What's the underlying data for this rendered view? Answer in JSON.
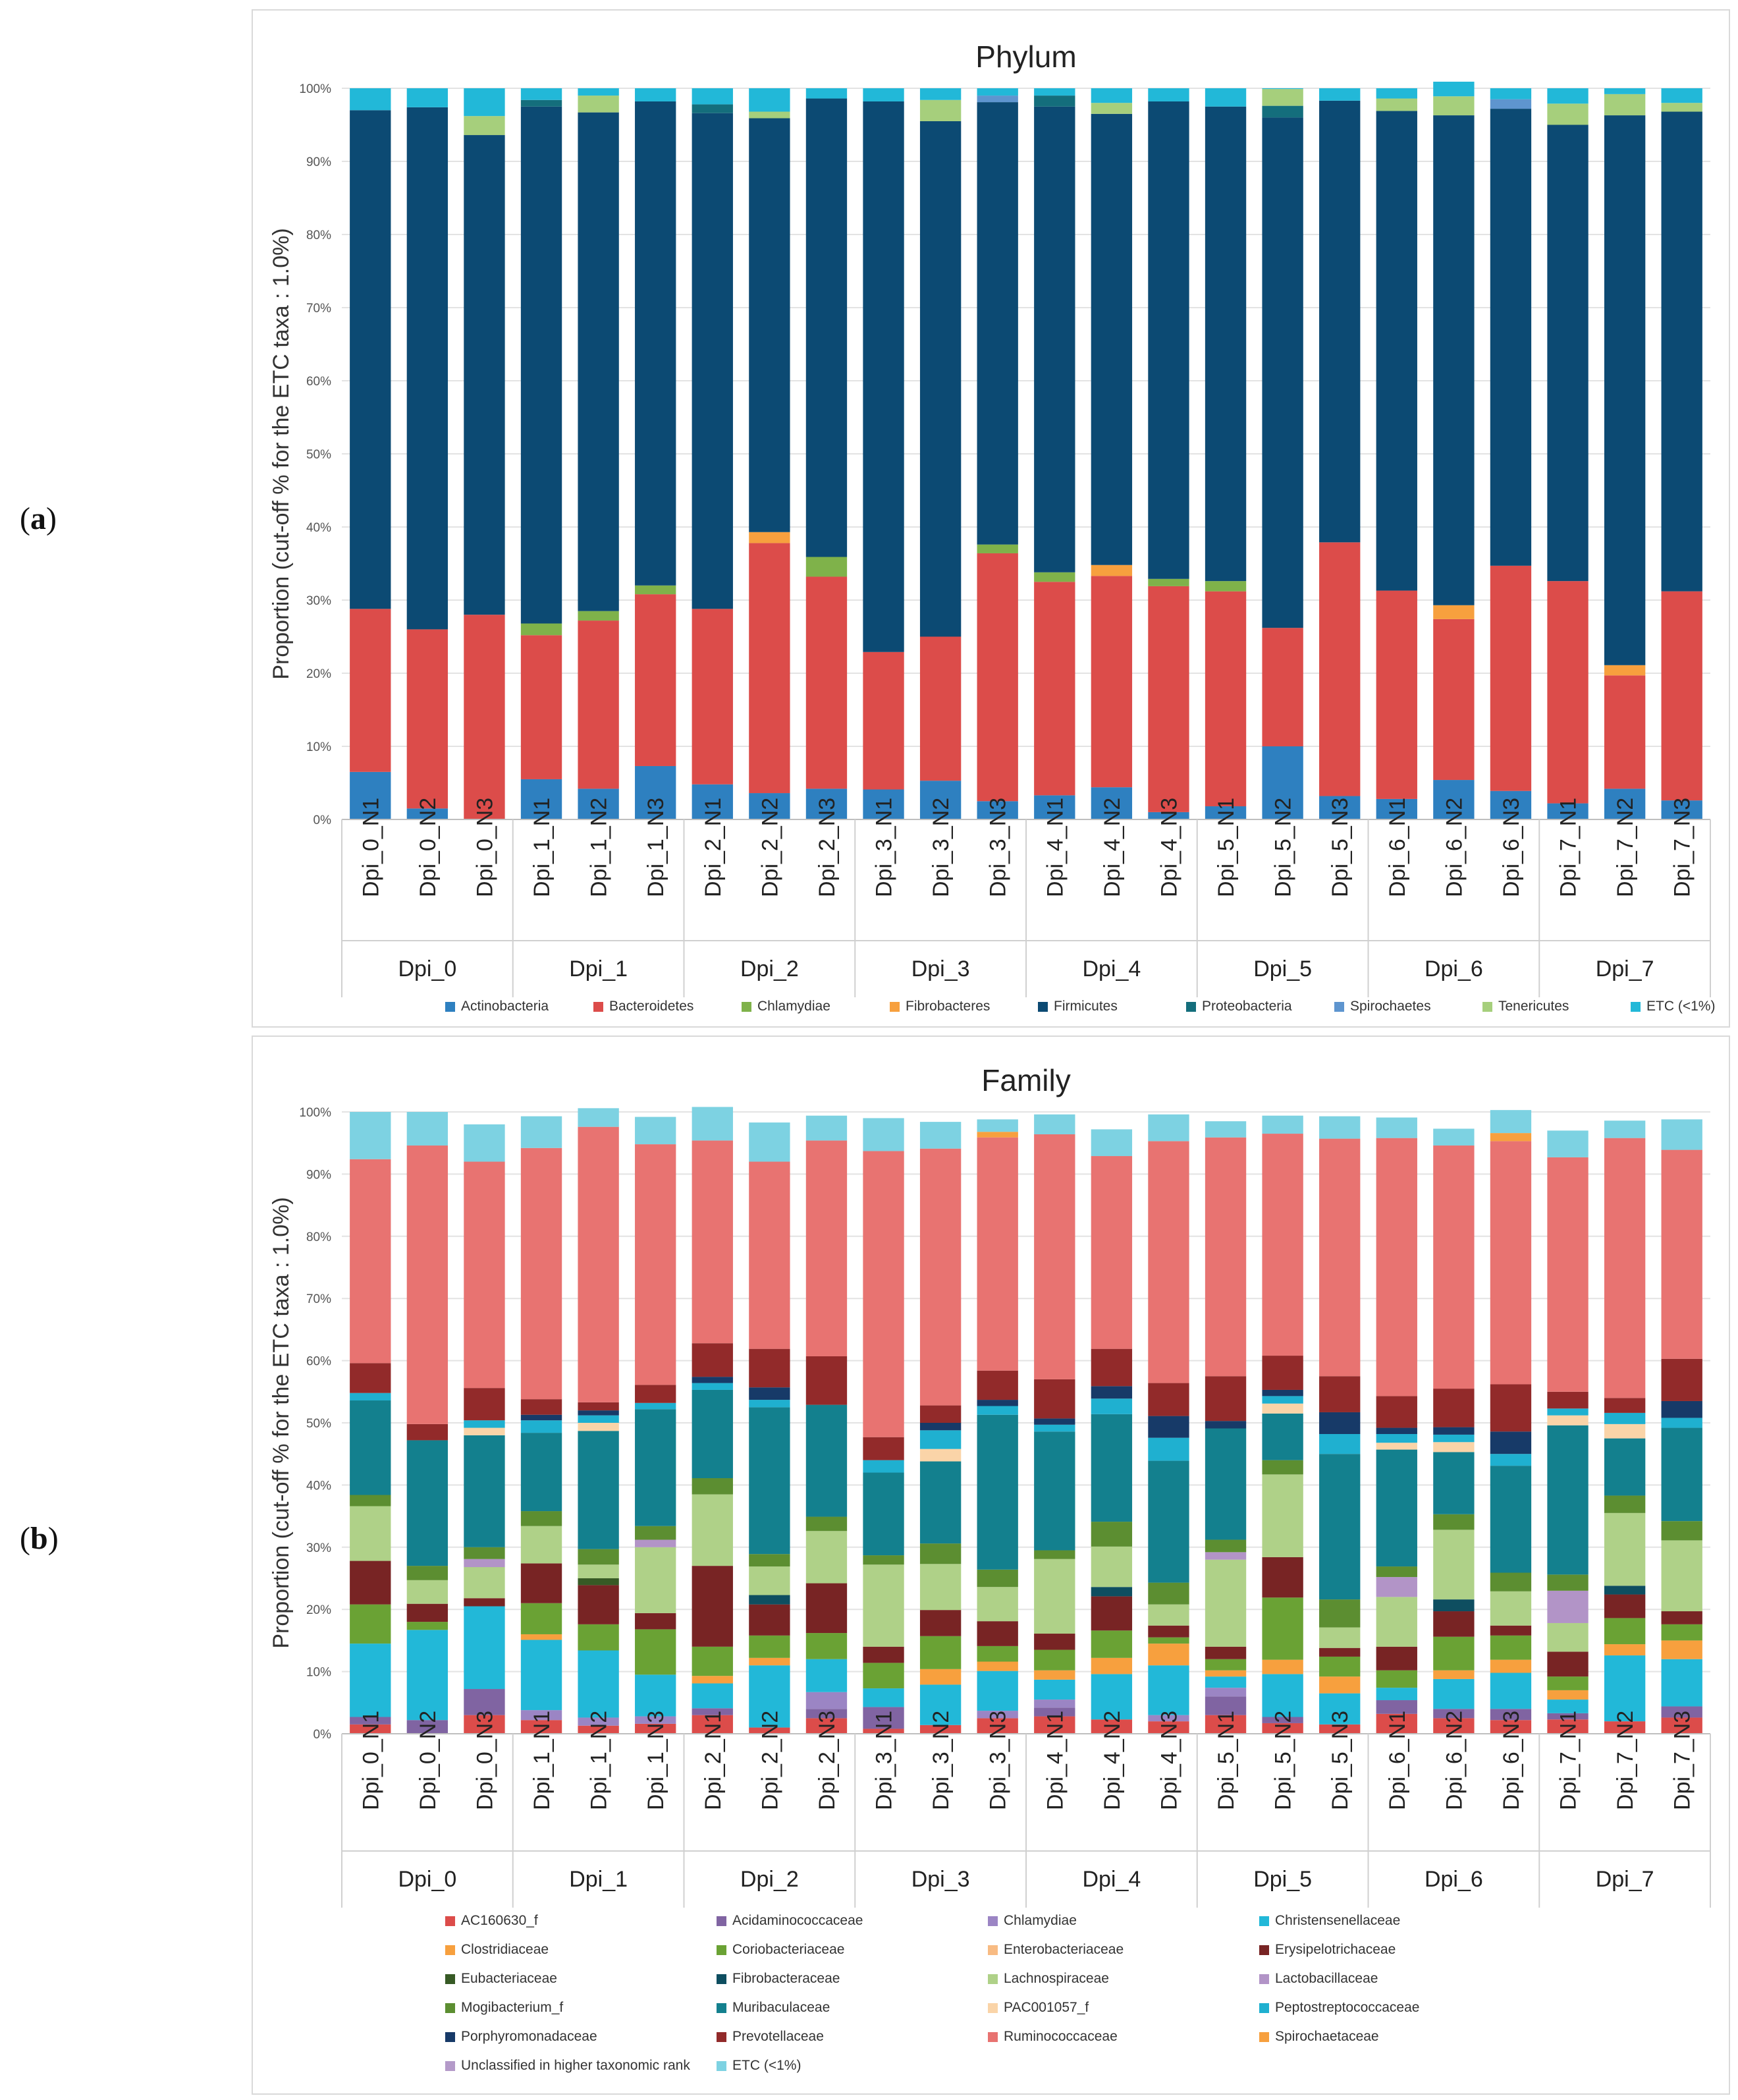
{
  "panels": {
    "a_label": "a",
    "b_label": "b"
  },
  "chart_data": [
    {
      "type": "bar",
      "stacked": true,
      "title": "Phylum",
      "ylabel": "Proportion (cut-off % for the ETC taxa : 1.0%)",
      "ylim": [
        0,
        100
      ],
      "yticks": [
        "0%",
        "10%",
        "20%",
        "30%",
        "40%",
        "50%",
        "60%",
        "70%",
        "80%",
        "90%",
        "100%"
      ],
      "categories": [
        "Dpi_0_N1",
        "Dpi_0_N2",
        "Dpi_0_N3",
        "Dpi_1_N1",
        "Dpi_1_N2",
        "Dpi_1_N3",
        "Dpi_2_N1",
        "Dpi_2_N2",
        "Dpi_2_N3",
        "Dpi_3_N1",
        "Dpi_3_N2",
        "Dpi_3_N3",
        "Dpi_4_N1",
        "Dpi_4_N2",
        "Dpi_4_N3",
        "Dpi_5_N1",
        "Dpi_5_N2",
        "Dpi_5_N3",
        "Dpi_6_N1",
        "Dpi_6_N2",
        "Dpi_6_N3",
        "Dpi_7_N1",
        "Dpi_7_N2",
        "Dpi_7_N3"
      ],
      "groups": [
        "Dpi_0",
        "Dpi_1",
        "Dpi_2",
        "Dpi_3",
        "Dpi_4",
        "Dpi_5",
        "Dpi_6",
        "Dpi_7"
      ],
      "legend_position": "bottom",
      "series": [
        {
          "name": "Actinobacteria",
          "color": "#2e80c0",
          "values": [
            6.5,
            1.5,
            0,
            5.5,
            4.2,
            7.3,
            4.8,
            3.6,
            4.2,
            4.1,
            5.3,
            2.5,
            3.3,
            4.4,
            1.0,
            1.8,
            10.0,
            3.2,
            2.8,
            5.4,
            3.9,
            2.2,
            4.2,
            2.6
          ]
        },
        {
          "name": "Bacteroidetes",
          "color": "#dc4c4a",
          "values": [
            22.3,
            24.5,
            28.0,
            19.7,
            23.0,
            23.5,
            24.0,
            34.2,
            29.0,
            18.8,
            19.7,
            33.9,
            29.2,
            28.9,
            30.9,
            29.4,
            16.2,
            34.7,
            28.5,
            22.0,
            30.8,
            30.4,
            15.5,
            28.6
          ]
        },
        {
          "name": "Chlamydiae",
          "color": "#7fb24a",
          "values": [
            0,
            0,
            0,
            1.6,
            1.3,
            1.2,
            0,
            0,
            2.7,
            0,
            0,
            1.2,
            1.3,
            0,
            1.0,
            1.4,
            0,
            0,
            0,
            0,
            0,
            0,
            0,
            0
          ]
        },
        {
          "name": "Fibrobacteres",
          "color": "#f7a03e",
          "values": [
            0,
            0,
            0,
            0,
            0,
            0,
            0,
            1.5,
            0,
            0,
            0,
            0,
            0,
            1.5,
            0,
            0,
            0,
            0,
            0,
            1.9,
            0,
            0,
            1.4,
            0
          ]
        },
        {
          "name": "Firmicutes",
          "color": "#0c4a73",
          "values": [
            68.2,
            71.4,
            65.6,
            70.7,
            68.2,
            66.2,
            67.8,
            56.6,
            62.7,
            75.3,
            70.5,
            60.5,
            63.7,
            61.7,
            65.3,
            64.9,
            69.8,
            60.4,
            65.6,
            67.0,
            62.5,
            62.4,
            75.2,
            65.6
          ]
        },
        {
          "name": "Proteobacteria",
          "color": "#146e7c",
          "values": [
            0,
            0,
            0,
            0.9,
            0,
            0,
            1.2,
            0,
            0,
            0,
            0,
            0,
            1.5,
            0,
            0,
            0,
            1.6,
            0,
            0,
            0,
            0,
            0,
            0,
            0
          ]
        },
        {
          "name": "Spirochaetes",
          "color": "#5e95cf",
          "values": [
            0,
            0,
            0,
            0,
            0,
            0,
            0,
            0,
            0,
            0,
            0,
            0.9,
            0,
            0,
            0,
            0,
            0,
            0,
            0,
            0,
            1.3,
            0,
            0,
            0
          ]
        },
        {
          "name": "Tenericutes",
          "color": "#a6cf7c",
          "values": [
            0,
            0,
            2.6,
            0,
            2.3,
            0,
            0,
            0.9,
            0,
            0,
            2.9,
            0,
            0,
            1.5,
            0,
            0,
            2.3,
            0,
            1.7,
            2.6,
            0,
            2.9,
            2.9,
            1.2
          ]
        },
        {
          "name": "ETC (<1%)",
          "color": "#22b8d8",
          "values": [
            3.0,
            2.6,
            3.8,
            1.6,
            1.0,
            1.8,
            2.2,
            3.2,
            1.4,
            1.8,
            1.6,
            1.0,
            1.0,
            2.0,
            1.8,
            2.5,
            0.1,
            1.7,
            1.4,
            2.0,
            1.5,
            2.1,
            0.8,
            2.0
          ]
        }
      ]
    },
    {
      "type": "bar",
      "stacked": true,
      "title": "Family",
      "ylabel": "Proportion (cut-off % for the ETC taxa : 1.0%)",
      "ylim": [
        0,
        100
      ],
      "yticks": [
        "0%",
        "10%",
        "20%",
        "30%",
        "40%",
        "50%",
        "60%",
        "70%",
        "80%",
        "90%",
        "100%"
      ],
      "categories": [
        "Dpi_0_N1",
        "Dpi_0_N2",
        "Dpi_0_N3",
        "Dpi_1_N1",
        "Dpi_1_N2",
        "Dpi_1_N3",
        "Dpi_2_N1",
        "Dpi_2_N2",
        "Dpi_2_N3",
        "Dpi_3_N1",
        "Dpi_3_N2",
        "Dpi_3_N3",
        "Dpi_4_N1",
        "Dpi_4_N2",
        "Dpi_4_N3",
        "Dpi_5_N1",
        "Dpi_5_N2",
        "Dpi_5_N3",
        "Dpi_6_N1",
        "Dpi_6_N2",
        "Dpi_6_N3",
        "Dpi_7_N1",
        "Dpi_7_N2",
        "Dpi_7_N3"
      ],
      "groups": [
        "Dpi_0",
        "Dpi_1",
        "Dpi_2",
        "Dpi_3",
        "Dpi_4",
        "Dpi_5",
        "Dpi_6",
        "Dpi_7"
      ],
      "legend_position": "bottom",
      "series": [
        {
          "name": "AC160630_f",
          "color": "#dc4c4a",
          "values": [
            1.5,
            0,
            3.0,
            2.2,
            1.3,
            1.6,
            3.0,
            1.0,
            2.5,
            0.8,
            1.4,
            2.5,
            2.8,
            2.3,
            2.0,
            3.0,
            1.7,
            1.5,
            3.2,
            2.5,
            2.2,
            2.3,
            2.0,
            2.6
          ]
        },
        {
          "name": "Acidaminococcaceae",
          "color": "#8064a2",
          "values": [
            1.2,
            2.2,
            4.2,
            0,
            0,
            0,
            1.1,
            0,
            1.5,
            3.5,
            0,
            0,
            1.4,
            0,
            0,
            3.0,
            1.0,
            0,
            2.2,
            1.5,
            1.8,
            1.0,
            0,
            1.8
          ]
        },
        {
          "name": "Chlamydiae",
          "color": "#9b85c4",
          "values": [
            0,
            0,
            0,
            1.6,
            1.3,
            1.2,
            0,
            0,
            2.7,
            0,
            0,
            1.2,
            1.3,
            0,
            1.0,
            1.4,
            0,
            0,
            0,
            0,
            0,
            0,
            0,
            0
          ]
        },
        {
          "name": "Christensenellaceae",
          "color": "#22b8d8",
          "values": [
            11.8,
            14.5,
            13.3,
            11.3,
            10.8,
            6.7,
            4.0,
            10.0,
            5.3,
            3.0,
            6.5,
            6.4,
            3.2,
            7.3,
            8.0,
            1.8,
            6.9,
            5.0,
            2.0,
            4.8,
            5.8,
            2.2,
            10.6,
            7.6
          ]
        },
        {
          "name": "Clostridiaceae",
          "color": "#f7a03e",
          "values": [
            0,
            0,
            0,
            0.9,
            0,
            0,
            1.2,
            1.2,
            0,
            0,
            2.5,
            1.5,
            1.5,
            2.6,
            3.5,
            1.0,
            2.3,
            2.7,
            0,
            1.4,
            2.1,
            1.5,
            1.8,
            3.0
          ]
        },
        {
          "name": "Coriobacteriaceae",
          "color": "#6aa234",
          "values": [
            6.3,
            1.3,
            0,
            5.0,
            4.2,
            7.3,
            4.7,
            3.6,
            4.2,
            4.1,
            5.3,
            2.5,
            3.3,
            4.4,
            1.0,
            1.8,
            10.0,
            3.2,
            2.8,
            5.4,
            3.9,
            2.2,
            4.2,
            2.6
          ]
        },
        {
          "name": "Enterobacteriaceae",
          "color": "#f8bb83",
          "values": [
            0,
            0,
            0,
            0,
            0,
            0,
            0,
            0,
            0,
            0,
            0,
            0,
            0,
            0,
            0,
            0,
            0,
            0,
            0,
            0,
            0,
            0,
            0,
            0
          ]
        },
        {
          "name": "Erysipelotrichaceae",
          "color": "#782424",
          "values": [
            7.0,
            2.9,
            1.3,
            6.4,
            6.3,
            2.6,
            13.0,
            5.0,
            8.0,
            2.6,
            4.2,
            4.0,
            2.6,
            5.5,
            1.9,
            2.0,
            6.5,
            1.4,
            3.8,
            4.1,
            1.6,
            4.0,
            3.8,
            2.1
          ]
        },
        {
          "name": "Eubacteriaceae",
          "color": "#375a25",
          "values": [
            0,
            0,
            0,
            0,
            1.1,
            0,
            0,
            0,
            0,
            0,
            0,
            0,
            0,
            0,
            0,
            0,
            0,
            0,
            0,
            0,
            0,
            0,
            0,
            0
          ]
        },
        {
          "name": "Fibrobacteraceae",
          "color": "#0e4e60",
          "values": [
            0,
            0,
            0,
            0,
            0,
            0,
            0,
            1.5,
            0,
            0,
            0,
            0,
            0,
            1.5,
            0,
            0,
            0,
            0,
            0,
            1.9,
            0,
            0,
            1.4,
            0
          ]
        },
        {
          "name": "Lachnospiraceae",
          "color": "#afd188",
          "values": [
            8.8,
            3.8,
            5.0,
            6.0,
            2.2,
            10.6,
            11.5,
            4.6,
            8.4,
            13.2,
            7.4,
            5.5,
            12.0,
            6.5,
            3.4,
            14.0,
            13.3,
            3.3,
            8.0,
            11.2,
            5.5,
            4.6,
            11.7,
            11.4
          ]
        },
        {
          "name": "Lactobacillaceae",
          "color": "#b294c7",
          "values": [
            0,
            0,
            1.3,
            0,
            0,
            1.2,
            0,
            0,
            0,
            0,
            0,
            0,
            0,
            0,
            0,
            1.2,
            0,
            0,
            3.2,
            0,
            0,
            5.2,
            0,
            0
          ]
        },
        {
          "name": "Mogibacterium_f",
          "color": "#5c8e31",
          "values": [
            1.8,
            2.3,
            1.9,
            2.4,
            2.5,
            2.2,
            2.6,
            2.0,
            2.3,
            1.5,
            3.3,
            2.8,
            1.4,
            4.0,
            3.5,
            2.0,
            2.3,
            4.5,
            1.7,
            2.5,
            3.0,
            2.6,
            2.8,
            3.1
          ]
        },
        {
          "name": "Muribaculaceae",
          "color": "#13808e",
          "values": [
            15.2,
            20.2,
            18.0,
            12.6,
            19.0,
            18.8,
            14.2,
            23.6,
            18.0,
            13.3,
            13.2,
            24.9,
            19.1,
            17.3,
            19.6,
            17.9,
            7.5,
            23.4,
            18.8,
            10.0,
            17.2,
            24.0,
            9.2,
            15.0
          ]
        },
        {
          "name": "PAC001057_f",
          "color": "#fad4a8",
          "values": [
            0,
            0,
            1.2,
            0,
            1.3,
            0,
            0,
            0,
            0,
            0,
            2.0,
            0,
            0,
            0,
            0,
            0,
            1.6,
            0,
            1.1,
            1.6,
            0,
            1.6,
            2.3,
            0
          ]
        },
        {
          "name": "Peptostreptococcaceae",
          "color": "#1fb0d0",
          "values": [
            1.2,
            0,
            1.2,
            2.0,
            1.2,
            1.0,
            1.1,
            1.2,
            0,
            2.0,
            3.0,
            1.4,
            1.1,
            2.5,
            3.7,
            0,
            1.2,
            3.2,
            1.4,
            1.2,
            1.9,
            1.1,
            1.8,
            1.6
          ]
        },
        {
          "name": "Porphyromonadaceae",
          "color": "#173a68",
          "values": [
            0,
            0,
            0,
            0.9,
            0.8,
            0,
            1.0,
            2.0,
            0,
            0,
            1.2,
            1.0,
            1.0,
            2.0,
            3.5,
            1.2,
            1.0,
            3.5,
            1.0,
            1.2,
            3.6,
            0,
            0,
            2.7
          ]
        },
        {
          "name": "Prevotellaceae",
          "color": "#922a2a",
          "values": [
            4.8,
            2.6,
            5.2,
            2.5,
            1.3,
            2.9,
            5.4,
            6.2,
            7.8,
            3.7,
            2.8,
            4.7,
            6.3,
            6.0,
            5.3,
            7.2,
            5.5,
            5.8,
            5.1,
            6.2,
            7.6,
            2.7,
            2.4,
            6.8
          ]
        },
        {
          "name": "Ruminococcaceae",
          "color": "#e87371",
          "values": [
            32.8,
            44.8,
            36.4,
            40.4,
            44.3,
            38.7,
            32.6,
            30.1,
            34.7,
            46.0,
            41.3,
            37.5,
            39.4,
            31.0,
            38.9,
            38.4,
            35.7,
            38.2,
            41.5,
            39.1,
            39.1,
            37.7,
            41.8,
            33.6
          ]
        },
        {
          "name": "Spirochaetaceae",
          "color": "#f7a03e",
          "values": [
            0,
            0,
            0,
            0,
            0,
            0,
            0,
            0,
            0,
            0,
            0,
            0.9,
            0,
            0,
            0,
            0,
            0,
            0,
            0,
            0,
            1.3,
            0,
            0,
            0
          ]
        },
        {
          "name": "Unclassified in higher taxonomic rank",
          "color": "#b49ac9",
          "values": [
            0,
            0,
            0,
            0,
            0,
            0,
            0,
            0,
            0,
            0,
            0,
            0,
            0,
            0,
            0,
            0,
            0,
            0,
            0,
            0,
            0,
            0,
            0,
            0
          ]
        },
        {
          "name": "ETC (<1%)",
          "color": "#7dd2e2",
          "values": [
            7.6,
            5.4,
            6.0,
            5.1,
            3.0,
            4.4,
            5.4,
            6.3,
            4.0,
            5.3,
            4.3,
            2.0,
            3.2,
            4.3,
            4.3,
            2.6,
            2.9,
            3.6,
            3.3,
            2.7,
            3.7,
            4.3,
            2.8,
            4.9
          ]
        }
      ]
    }
  ]
}
